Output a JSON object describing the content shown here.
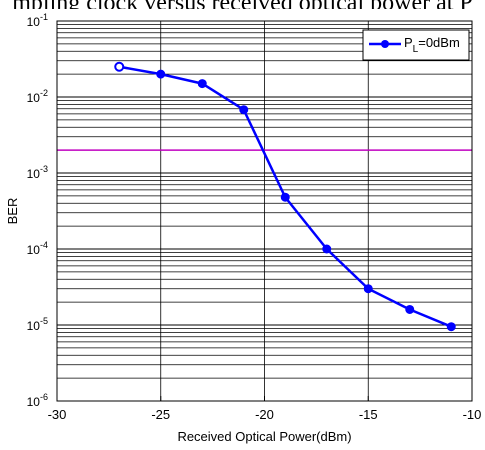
{
  "caption_fragment": "mpling clock versus received optical power at P",
  "chart_data": {
    "type": "line",
    "title": "",
    "xlabel": "Received Optical Power(dBm)",
    "ylabel": "BER",
    "xlim": [
      -30,
      -10
    ],
    "ylim": [
      1e-06,
      0.1
    ],
    "yscale": "log",
    "grid": true,
    "legend_position": "top-right",
    "x_ticks": [
      -30,
      -25,
      -20,
      -15,
      -10
    ],
    "y_ticks": [
      1e-06,
      1e-05,
      0.0001,
      0.001,
      0.01,
      0.1
    ],
    "y_tick_labels": [
      {
        "base": "10",
        "exp": "-6"
      },
      {
        "base": "10",
        "exp": "-5"
      },
      {
        "base": "10",
        "exp": "-4"
      },
      {
        "base": "10",
        "exp": "-3"
      },
      {
        "base": "10",
        "exp": "-2"
      },
      {
        "base": "10",
        "exp": "-1"
      }
    ],
    "series": [
      {
        "name": "P_L=0dBm",
        "legend_main": "P",
        "legend_sub": "L",
        "legend_rest": "=0dBm",
        "color": "#0000ff",
        "x": [
          -27,
          -25,
          -23,
          -21,
          -19,
          -17,
          -15,
          -13,
          -11
        ],
        "y": [
          0.025,
          0.02,
          0.015,
          0.0068,
          0.00048,
          0.0001,
          3e-05,
          1.6e-05,
          9.5e-06
        ]
      }
    ],
    "reference_line": {
      "y": 0.002,
      "color": "#c000c0"
    }
  }
}
